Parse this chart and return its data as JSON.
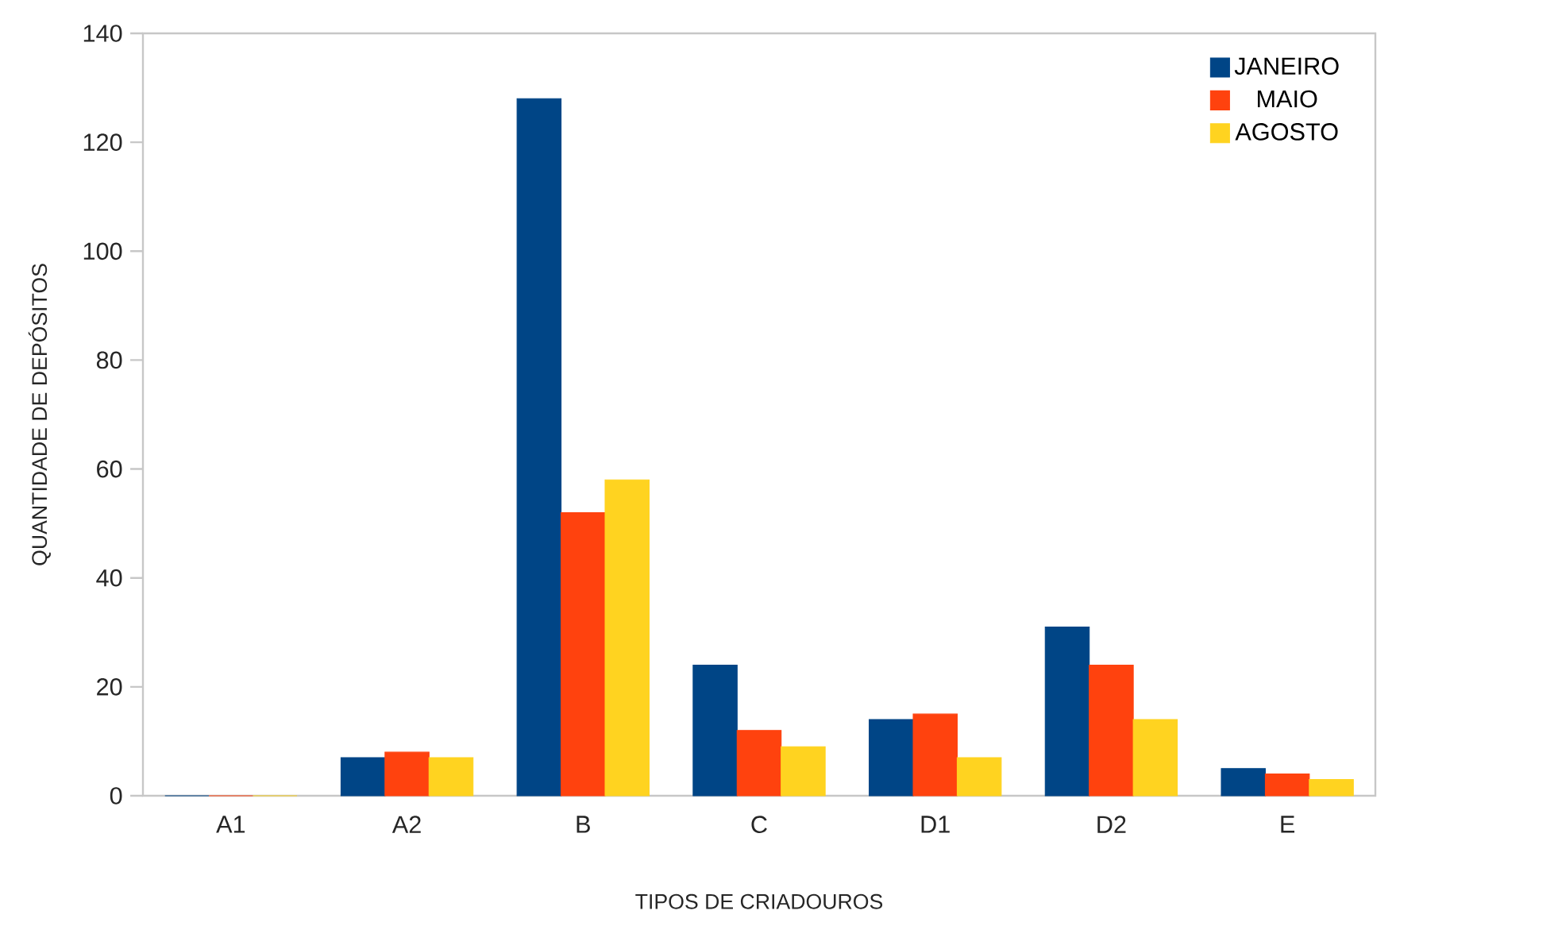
{
  "chart_data": {
    "type": "bar",
    "xlabel": "TIPOS DE CRIADOUROS",
    "ylabel": "QUANTIDADE DE DEPÓSITOS",
    "categories": [
      "A1",
      "A2",
      "B",
      "C",
      "D1",
      "D2",
      "E"
    ],
    "series": [
      {
        "name": "JANEIRO",
        "color": "#004586",
        "values": [
          0,
          7,
          128,
          24,
          14,
          31,
          5
        ]
      },
      {
        "name": "MAIO",
        "color": "#ff420e",
        "values": [
          0,
          8,
          52,
          12,
          15,
          24,
          4
        ]
      },
      {
        "name": "AGOSTO",
        "color": "#ffd320",
        "values": [
          0,
          7,
          58,
          9,
          7,
          14,
          3
        ]
      }
    ],
    "ylim": [
      0,
      140
    ],
    "yticks": [
      0,
      20,
      40,
      60,
      80,
      100,
      120,
      140
    ],
    "grid": false,
    "legend": "top right"
  }
}
